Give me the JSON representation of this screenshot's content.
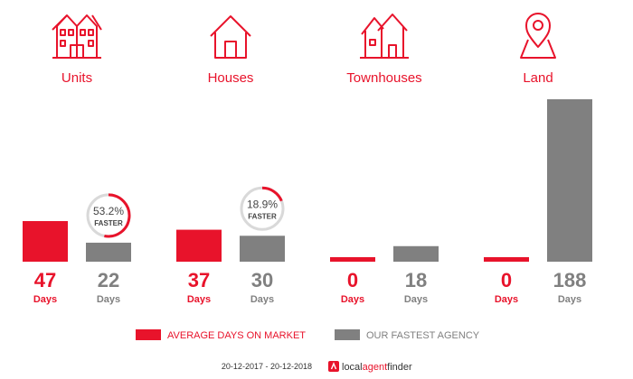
{
  "colors": {
    "accent": "#e8132b",
    "agency": "#808080",
    "ring_track": "#d9d9d9",
    "label_text": "#444444",
    "footer_text": "#333333"
  },
  "chart_data": {
    "type": "bar",
    "title": "",
    "categories": [
      "Units",
      "Houses",
      "Townhouses",
      "Land"
    ],
    "category_icons": [
      "units-building-icon",
      "house-icon",
      "townhouses-icon",
      "map-pin-icon"
    ],
    "series": [
      {
        "name": "AVERAGE DAYS ON MARKET",
        "values": [
          47,
          37,
          0,
          0
        ]
      },
      {
        "name": "OUR FASTEST AGENCY",
        "values": [
          22,
          30,
          18,
          188
        ]
      }
    ],
    "value_unit": "Days",
    "faster_badges": [
      {
        "category_index": 0,
        "percent_text": "53.2%",
        "percent": 53.2,
        "label": "FASTER"
      },
      {
        "category_index": 1,
        "percent_text": "18.9%",
        "percent": 18.9,
        "label": "FASTER"
      }
    ],
    "legend_position": "bottom",
    "grid": false
  },
  "footer": {
    "date_range": "20-12-2017 - 20-12-2018",
    "brand_local": "local",
    "brand_agent": "agent",
    "brand_finder": "finder"
  }
}
